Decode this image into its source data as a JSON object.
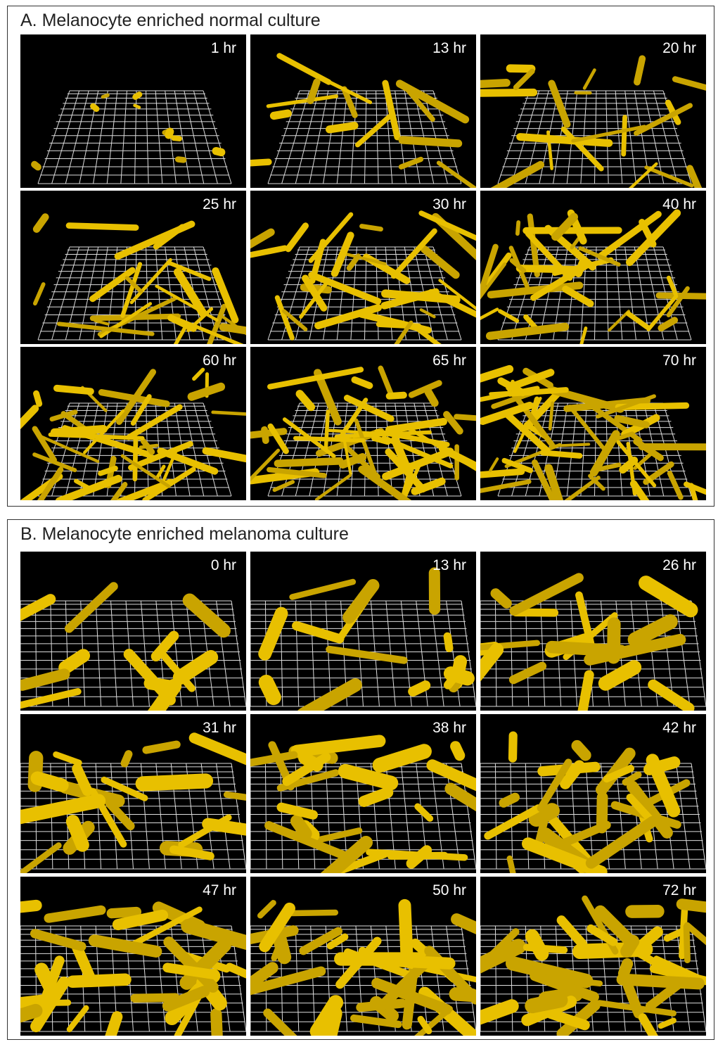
{
  "panel_a": {
    "title": "A. Melanocyte enriched normal culture",
    "time_labels": [
      "1 hr",
      "13 hr",
      "20 hr",
      "25 hr",
      "30 hr",
      "40 hr",
      "60 hr",
      "65 hr",
      "70 hr"
    ]
  },
  "panel_b": {
    "title": "B. Melanocyte enriched melanoma culture",
    "time_labels": [
      "0 hr",
      "13 hr",
      "26 hr",
      "31 hr",
      "38 hr",
      "42 hr",
      "47 hr",
      "50 hr",
      "72 hr"
    ]
  }
}
